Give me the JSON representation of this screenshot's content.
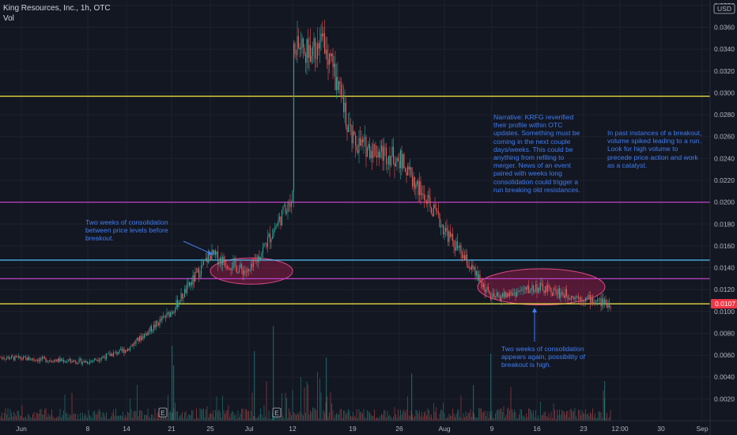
{
  "header": {
    "symbol_line": "King Resources, Inc., 1h, OTC",
    "indicator": "Vol"
  },
  "currency_badge": "USD",
  "price_tag": "0.0107",
  "annotations": {
    "note1": "Two weeks of consolidation\nbetween price levels before\nbreakout.",
    "note2": "Narrative: KRFG reverified\ntheir profile within OTC\nupdates. Something must be\ncoming in the next couple\ndays/weeks. This could be\nanything from refiling to\nmerger. News of an event\npaired with weeks long\nconsolidation could trigger a\nrun breaking old resistances.",
    "note3": "In past instances of a breakout,\nvolume spiked leading to a run.\nLook for high volume to\nprecede price action and work\nas a catalyst.",
    "note4": "Two weeks of consolidation\nappears again, possibility of\nbreakout is high."
  },
  "earnings_marker": "E",
  "colors": {
    "background": "#131722",
    "up": "#26a69a",
    "down": "#ef5350",
    "yellow_line": "#f5ec42",
    "magenta_line": "#c041c9",
    "cyan_line": "#4fc3f7",
    "text_blue": "#3f7df5",
    "price_tag_bg": "#f23645"
  },
  "chart_data": {
    "type": "candlestick",
    "y_axis": {
      "ticks": [
        "0.0020",
        "0.0040",
        "0.0060",
        "0.0080",
        "0.0100",
        "0.0120",
        "0.0140",
        "0.0160",
        "0.0180",
        "0.0200",
        "0.0220",
        "0.0240",
        "0.0260",
        "0.0280",
        "0.0300",
        "0.0320",
        "0.0340",
        "0.0360",
        "0.0380"
      ],
      "range": [
        0.0,
        0.0385
      ]
    },
    "x_axis": {
      "ticks": [
        "Jun",
        "8",
        "14",
        "21",
        "25",
        "Jul",
        "12",
        "19",
        "26",
        "Aug",
        "9",
        "16",
        "23",
        "12:00",
        "30",
        "Sep"
      ]
    },
    "horizontal_levels": [
      {
        "price": 0.0297,
        "color": "#f5ec42"
      },
      {
        "price": 0.02,
        "color": "#c041c9"
      },
      {
        "price": 0.0147,
        "color": "#4fc3f7"
      },
      {
        "price": 0.013,
        "color": "#c041c9"
      },
      {
        "price": 0.0107,
        "color": "#f5ec42"
      }
    ],
    "consolidation_zones": [
      {
        "start_label": "25",
        "end_label": "Jul",
        "low": 0.0125,
        "high": 0.0149
      },
      {
        "start_label": "9",
        "end_label": "23",
        "low": 0.0106,
        "high": 0.0139
      }
    ],
    "price_path": [
      {
        "x": "Jun",
        "price": 0.0058
      },
      {
        "x": "8",
        "price": 0.0054
      },
      {
        "x": "14",
        "price": 0.0065
      },
      {
        "x": "21",
        "price": 0.01
      },
      {
        "x": "25",
        "price": 0.0152
      },
      {
        "x": "Jul",
        "price": 0.0135
      },
      {
        "x": "12",
        "price": 0.0205
      },
      {
        "x": "14",
        "price": 0.03
      },
      {
        "x": "15",
        "price": 0.0345
      },
      {
        "x": "19",
        "price": 0.0255
      },
      {
        "x": "26",
        "price": 0.024
      },
      {
        "x": "Aug",
        "price": 0.0175
      },
      {
        "x": "9",
        "price": 0.0112
      },
      {
        "x": "16",
        "price": 0.0122
      },
      {
        "x": "23",
        "price": 0.0112
      },
      {
        "x": "12:00",
        "price": 0.0107
      }
    ],
    "last_price": 0.0107,
    "series": [
      {
        "name": "Vol",
        "values": []
      }
    ]
  }
}
